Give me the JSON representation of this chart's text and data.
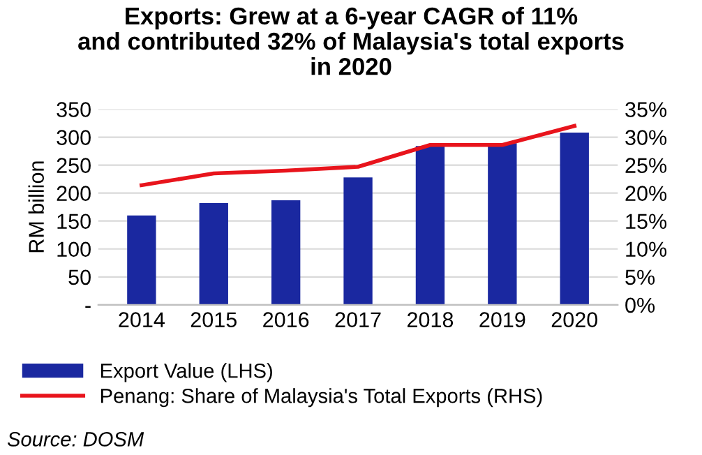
{
  "chart_data": {
    "type": "bar",
    "title": "Exports: Grew at a 6-year CAGR of 11%\nand contributed 32% of Malaysia's total exports\nin 2020",
    "categories": [
      "2014",
      "2015",
      "2016",
      "2017",
      "2018",
      "2019",
      "2020"
    ],
    "series": [
      {
        "name": "Export Value (LHS)",
        "color": "#1a28a0",
        "values": [
          160,
          182,
          187,
          228,
          284,
          289,
          308
        ]
      },
      {
        "name": "Penang: Share of Malaysia's Total Exports (RHS)",
        "type": "line",
        "axis": "y2",
        "color": "#e8141c",
        "values": [
          21.4,
          23.5,
          24.0,
          24.7,
          28.6,
          28.6,
          32.0
        ]
      }
    ],
    "ylabel": "RM billion",
    "ylim": [
      0,
      350
    ],
    "yticks": [
      {
        "value": 0,
        "label": "-"
      },
      50,
      100,
      150,
      200,
      250,
      300,
      350
    ],
    "y2lim": [
      0,
      35
    ],
    "y2ticks": [
      {
        "value": 0,
        "label": "0%"
      },
      {
        "value": 5,
        "label": "5%"
      },
      {
        "value": 10,
        "label": "10%"
      },
      {
        "value": 15,
        "label": "15%"
      },
      {
        "value": 20,
        "label": "20%"
      },
      {
        "value": 25,
        "label": "25%"
      },
      {
        "value": 30,
        "label": "30%"
      },
      {
        "value": 35,
        "label": "35%"
      }
    ],
    "grid": "y",
    "legend": "bottom",
    "annotations": [
      "Source: DOSM"
    ]
  }
}
